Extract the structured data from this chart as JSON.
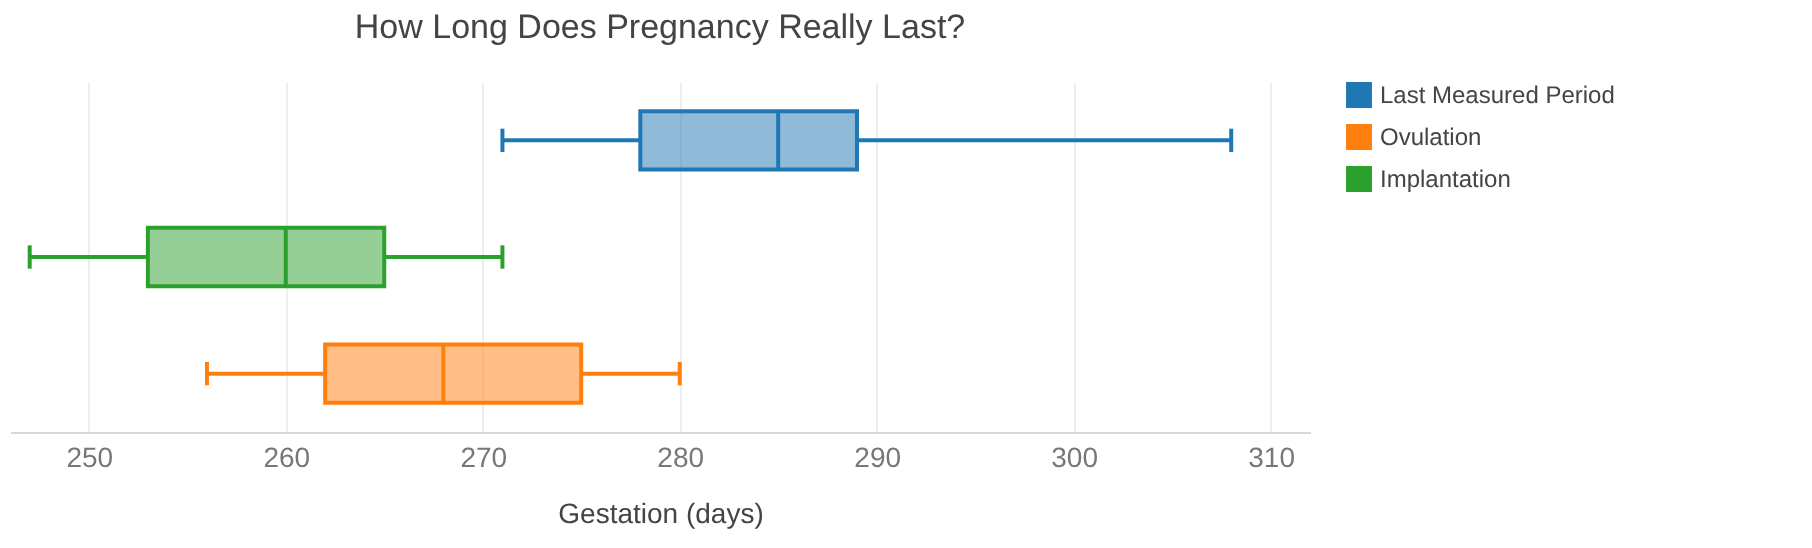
{
  "chart_data": {
    "type": "box",
    "orientation": "horizontal",
    "title": "How Long Does Pregnancy Really Last?",
    "xlabel": "Gestation (days)",
    "categories": [
      null,
      null,
      null
    ],
    "series": [
      {
        "name": "Last Measured Period",
        "color": "#1f77b4",
        "boxes": [
          {
            "low": 271,
            "q1": 278,
            "median": 285,
            "q3": 289,
            "high": 308
          },
          null,
          null
        ]
      },
      {
        "name": "Ovulation",
        "color": "#ff7f0e",
        "boxes": [
          null,
          null,
          {
            "low": 256,
            "q1": 262,
            "median": 268,
            "q3": 275,
            "high": 280
          }
        ]
      },
      {
        "name": "Implantation",
        "color": "#2ca02c",
        "boxes": [
          null,
          {
            "low": 247,
            "q1": 253,
            "median": 260,
            "q3": 265,
            "high": 271
          },
          null
        ]
      }
    ],
    "xlim": [
      246,
      312
    ],
    "xticks": [
      250,
      260,
      270,
      280,
      290,
      300,
      310
    ],
    "grid": "x",
    "legend": "top right"
  }
}
